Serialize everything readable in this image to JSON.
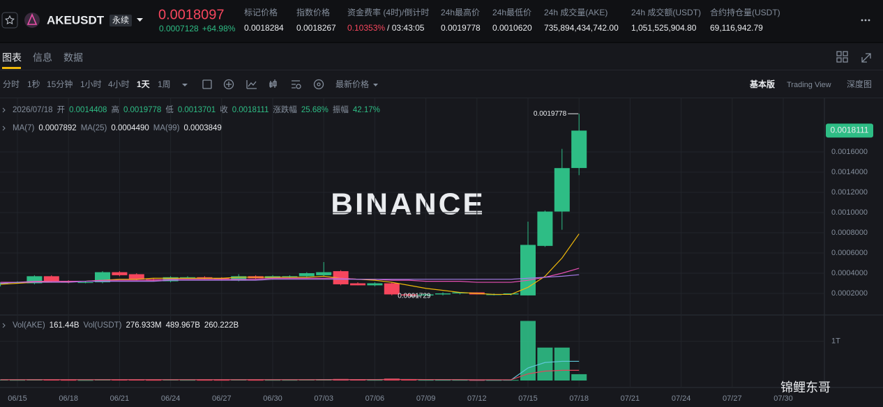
{
  "header": {
    "symbol": "AKEUSDT",
    "contract_type": "永续",
    "last_price": "0.0018097",
    "change": "0.0007128",
    "change_percent": "+64.98%",
    "stats": [
      {
        "label": "标记价格",
        "value": "0.0018284"
      },
      {
        "label": "指数价格",
        "value": "0.0018267"
      },
      {
        "label": "资金费率 (4时)/倒计时",
        "value": "0.10353%",
        "countdown": "/ 03:43:05"
      },
      {
        "label": "24h最高价",
        "value": "0.0019778"
      },
      {
        "label": "24h最低价",
        "value": "0.0010620"
      },
      {
        "label": "24h 成交量(AKE)",
        "value": "735,894,434,742.00"
      },
      {
        "label": "24h 成交额(USDT)",
        "value": "1,051,525,904.80"
      },
      {
        "label": "合约持仓量(USDT)",
        "value": "69,116,942.79"
      }
    ]
  },
  "tabs": [
    "图表",
    "信息",
    "数据"
  ],
  "toolbar": {
    "intervals": [
      "分时",
      "1秒",
      "15分钟",
      "1小时",
      "4小时",
      "1天",
      "1周"
    ],
    "price_type": "最新价格",
    "views": [
      "基本版",
      "Trading View",
      "深度图"
    ]
  },
  "overlay_text": "锦鲤东哥",
  "chart_data": {
    "type": "candlestick",
    "watermark": "BINANCE",
    "info": {
      "date": "2026/07/18",
      "items": [
        {
          "label": "开",
          "value": "0.0014408"
        },
        {
          "label": "高",
          "value": "0.0019778"
        },
        {
          "label": "低",
          "value": "0.0013701"
        },
        {
          "label": "收",
          "value": "0.0018111"
        },
        {
          "label": "涨跌幅",
          "value": "25.68%"
        },
        {
          "label": "振幅",
          "value": "42.17%"
        }
      ]
    },
    "up_color": "#2ebd85",
    "down_color": "#f6465d",
    "categories": [
      null,
      "06/15",
      null,
      null,
      "06/18",
      null,
      null,
      "06/21",
      null,
      null,
      "06/24",
      null,
      null,
      "06/27",
      null,
      null,
      "06/30",
      null,
      null,
      "07/03",
      null,
      null,
      "07/06",
      null,
      null,
      "07/09",
      null,
      null,
      "07/12",
      null,
      null,
      "07/15",
      null,
      null,
      "07/18",
      null,
      null,
      "07/21",
      null,
      null,
      "07/24",
      null,
      null,
      "07/27",
      null,
      null,
      "07/30",
      null
    ],
    "open": [
      0.00029,
      0.00031,
      0.0003,
      0.00037,
      0.00032,
      0.00031,
      0.00031,
      0.00041,
      0.00039,
      0.00034,
      0.00032,
      0.00036,
      0.00036,
      0.00035,
      0.00033,
      0.00037,
      0.00035,
      0.00036,
      0.00037,
      0.00038,
      0.00042,
      0.0003,
      0.00028,
      0.0003,
      0.00019,
      0.00018,
      0.00019,
      0.0002,
      0.00021,
      0.00019,
      0.00019,
      0.00018,
      0.00067,
      0.00101,
      0.0014408,
      null,
      null,
      null,
      null,
      null,
      null,
      null,
      null,
      null,
      null,
      null,
      null,
      null
    ],
    "high": [
      0.00031,
      0.00032,
      0.00038,
      0.00038,
      0.00033,
      0.00032,
      0.00042,
      0.00042,
      0.0004,
      0.00035,
      0.00037,
      0.00037,
      0.00037,
      0.00036,
      0.00039,
      0.00038,
      0.00038,
      0.00038,
      0.00041,
      0.00051,
      0.00043,
      0.00031,
      0.00031,
      0.00031,
      0.0002,
      0.0002,
      0.00021,
      0.00021,
      0.00021,
      0.0002,
      0.0002,
      0.00091,
      0.00102,
      0.00163,
      0.0019778,
      null,
      null,
      null,
      null,
      null,
      null,
      null,
      null,
      null,
      null,
      null,
      null,
      null
    ],
    "low": [
      0.00027,
      0.0003,
      0.00029,
      0.00031,
      0.0003,
      0.0003,
      0.0003,
      0.00037,
      0.00033,
      0.00032,
      0.00031,
      0.00035,
      0.00034,
      0.00033,
      0.00032,
      0.00034,
      0.00034,
      0.00035,
      0.00036,
      0.00037,
      0.00028,
      0.00028,
      0.00027,
      0.00018,
      0.0001729,
      0.00018,
      0.00018,
      0.00019,
      0.00019,
      0.00018,
      0.00018,
      0.00018,
      0.00066,
      0.00083,
      0.0013701,
      null,
      null,
      null,
      null,
      null,
      null,
      null,
      null,
      null,
      null,
      null,
      null,
      null
    ],
    "close": [
      0.0003,
      0.00031,
      0.00037,
      0.00032,
      0.00031,
      0.00031,
      0.00041,
      0.00038,
      0.00034,
      0.00033,
      0.00036,
      0.00036,
      0.00035,
      0.00034,
      0.00037,
      0.00035,
      0.00037,
      0.00037,
      0.0004,
      0.00041,
      0.00029,
      0.00028,
      0.0003,
      0.00019,
      0.00018,
      0.00019,
      0.0002,
      0.00021,
      0.00019,
      0.00019,
      0.0002,
      0.00068,
      0.00101,
      0.00144,
      0.0018111,
      null,
      null,
      null,
      null,
      null,
      null,
      null,
      null,
      null,
      null,
      null,
      null,
      null
    ],
    "ma_series": [
      {
        "name": "MA(7)",
        "value_label": "0.0007892",
        "color": "#f0b90b",
        "values": [
          0.00029,
          0.0003,
          0.00031,
          0.00032,
          0.00032,
          0.00032,
          0.00033,
          0.00034,
          0.00034,
          0.00035,
          0.00035,
          0.00035,
          0.00035,
          0.00035,
          0.00036,
          0.00036,
          0.00036,
          0.00036,
          0.00036,
          0.00037,
          0.00035,
          0.00034,
          0.00033,
          0.00031,
          0.00028,
          0.00025,
          0.00023,
          0.00021,
          0.0002,
          0.00019,
          0.00019,
          0.00026,
          0.00037,
          0.00055,
          0.0007892,
          null,
          null,
          null,
          null,
          null,
          null,
          null,
          null,
          null,
          null,
          null,
          null,
          null
        ]
      },
      {
        "name": "MA(25)",
        "value_label": "0.0004490",
        "color": "#e84fb4",
        "values": [
          0.00031,
          0.00031,
          0.00032,
          0.00032,
          0.00032,
          0.00032,
          0.00033,
          0.00033,
          0.00033,
          0.00033,
          0.00034,
          0.00034,
          0.00034,
          0.00034,
          0.00034,
          0.00034,
          0.00035,
          0.00035,
          0.00035,
          0.00035,
          0.00035,
          0.00034,
          0.00034,
          0.00033,
          0.00033,
          0.00032,
          0.00032,
          0.00032,
          0.00031,
          0.00031,
          0.00031,
          0.00033,
          0.00036,
          0.0004,
          0.000449,
          null,
          null,
          null,
          null,
          null,
          null,
          null,
          null,
          null,
          null,
          null,
          null,
          null
        ]
      },
      {
        "name": "MA(99)",
        "value_label": "0.0003849",
        "color": "#a77ce8",
        "values": [
          0.0003,
          0.00031,
          0.00031,
          0.00031,
          0.00031,
          0.00032,
          0.00032,
          0.00032,
          0.00032,
          0.00032,
          0.00033,
          0.00033,
          0.00033,
          0.00033,
          0.00033,
          0.00033,
          0.00034,
          0.00034,
          0.00034,
          0.00034,
          0.00034,
          0.00034,
          0.00034,
          0.00034,
          0.00034,
          0.00034,
          0.00034,
          0.00034,
          0.00034,
          0.00034,
          0.00034,
          0.00035,
          0.00036,
          0.00037,
          0.0003849,
          null,
          null,
          null,
          null,
          null,
          null,
          null,
          null,
          null,
          null,
          null,
          null,
          null
        ]
      }
    ],
    "ylim": [
      0,
      0.0021
    ],
    "yticks": [
      {
        "value": 0.0002,
        "label": "0.0002000"
      },
      {
        "value": 0.0004,
        "label": "0.0004000"
      },
      {
        "value": 0.0006,
        "label": "0.0006000"
      },
      {
        "value": 0.0008,
        "label": "0.0008000"
      },
      {
        "value": 0.001,
        "label": "0.0010000"
      },
      {
        "value": 0.0012,
        "label": "0.0012000"
      },
      {
        "value": 0.0014,
        "label": "0.0014000"
      },
      {
        "value": 0.0016,
        "label": "0.0016000"
      }
    ],
    "last_price_label": "0.0018111",
    "high_label": "0.0019778",
    "low_label": "0.0001729",
    "volume": {
      "legend": [
        {
          "label": "Vol(AKE)",
          "value": "161.44B"
        },
        {
          "label": "Vol(USDT)",
          "value": "276.933M"
        }
      ],
      "values": [
        20000000000.0,
        15000000000.0,
        30000000000.0,
        25000000000.0,
        15000000000.0,
        12000000000.0,
        30000000000.0,
        25000000000.0,
        20000000000.0,
        15000000000.0,
        20000000000.0,
        15000000000.0,
        15000000000.0,
        15000000000.0,
        20000000000.0,
        15000000000.0,
        15000000000.0,
        15000000000.0,
        20000000000.0,
        35000000000.0,
        40000000000.0,
        20000000000.0,
        15000000000.0,
        50000000000.0,
        25000000000.0,
        15000000000.0,
        15000000000.0,
        15000000000.0,
        12000000000.0,
        12000000000.0,
        15000000000.0,
        1520000000000.0,
        840000000000.0,
        840000000000.0,
        161440000000.0,
        null,
        null,
        null,
        null,
        null,
        null,
        null,
        null,
        null,
        null,
        null,
        null,
        null
      ],
      "ma_series": [
        {
          "value_label": "489.967B",
          "color": "#5fc8d8",
          "values": [
            20000000000.0,
            20000000000.0,
            20000000000.0,
            20000000000.0,
            20000000000.0,
            20000000000.0,
            20000000000.0,
            20000000000.0,
            20000000000.0,
            20000000000.0,
            20000000000.0,
            20000000000.0,
            20000000000.0,
            20000000000.0,
            20000000000.0,
            20000000000.0,
            20000000000.0,
            20000000000.0,
            20000000000.0,
            22000000000.0,
            25000000000.0,
            25000000000.0,
            25000000000.0,
            28000000000.0,
            28000000000.0,
            25000000000.0,
            22000000000.0,
            20000000000.0,
            16000000000.0,
            15000000000.0,
            14000000000.0,
            320000000000.0,
            460000000000.0,
            490000000000.0,
            489967000000.0,
            null,
            null,
            null,
            null,
            null,
            null,
            null,
            null,
            null,
            null,
            null,
            null,
            null
          ]
        },
        {
          "value_label": "260.222B",
          "color": "#e0465b",
          "values": [
            20000000000.0,
            20000000000.0,
            20000000000.0,
            20000000000.0,
            20000000000.0,
            20000000000.0,
            20000000000.0,
            20000000000.0,
            20000000000.0,
            20000000000.0,
            20000000000.0,
            20000000000.0,
            20000000000.0,
            20000000000.0,
            20000000000.0,
            20000000000.0,
            20000000000.0,
            20000000000.0,
            20000000000.0,
            20000000000.0,
            22000000000.0,
            22000000000.0,
            22000000000.0,
            24000000000.0,
            24000000000.0,
            24000000000.0,
            23000000000.0,
            22000000000.0,
            21000000000.0,
            20000000000.0,
            19000000000.0,
            170000000000.0,
            240000000000.0,
            260000000000.0,
            260222000000.0,
            null,
            null,
            null,
            null,
            null,
            null,
            null,
            null,
            null,
            null,
            null,
            null,
            null
          ]
        }
      ],
      "ylim": [
        0,
        1600000000000.0
      ],
      "yticks": [
        {
          "value": 1000000000000.0,
          "label": "1T"
        }
      ]
    }
  }
}
